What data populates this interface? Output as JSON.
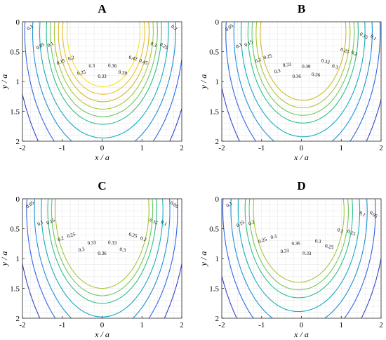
{
  "chart_data": [
    {
      "type": "contour",
      "title": "A",
      "xlabel": "x / a",
      "ylabel": "y / a",
      "xlim": [
        -2,
        2
      ],
      "ylim": [
        2,
        0
      ],
      "xticks": [
        "-2",
        "-1",
        "0",
        "1",
        "2"
      ],
      "yticks": [
        "0",
        "0.5",
        "1",
        "1.5",
        "2"
      ],
      "grid": true,
      "y_axis_reversed": true,
      "contour_levels": [
        0.05,
        0.1,
        0.15,
        0.2,
        0.25,
        0.3,
        0.33,
        0.36,
        0.39,
        0.42,
        0.45
      ],
      "level_labels": [
        "0.1",
        "0.05",
        "0.1",
        "0.15",
        "0.2",
        "0.25",
        "0.3",
        "0.33",
        "0.36",
        "0.39",
        "0.42",
        "0.45",
        "0.3",
        "0.25",
        "0.2"
      ]
    },
    {
      "type": "contour",
      "title": "B",
      "xlabel": "x / a",
      "ylabel": "y / a",
      "xlim": [
        -2,
        2
      ],
      "ylim": [
        2,
        0
      ],
      "xticks": [
        "-2",
        "-1",
        "0",
        "1",
        "2"
      ],
      "yticks": [
        "0",
        "0.5",
        "1",
        "1.5",
        "2"
      ],
      "grid": true,
      "y_axis_reversed": true,
      "contour_levels": [
        0.05,
        0.1,
        0.15,
        0.2,
        0.25,
        0.3,
        0.33,
        0.36,
        0.39
      ],
      "level_labels": [
        "0.05",
        "0.1",
        "0.15",
        "0.2",
        "0.25",
        "0.3",
        "0.33",
        "0.36",
        "0.39",
        "0.36",
        "0.33",
        "0.3",
        "0.25",
        "0.2",
        "0.15",
        "0.1"
      ]
    },
    {
      "type": "contour",
      "title": "C",
      "xlabel": "x / a",
      "ylabel": "y / a",
      "xlim": [
        -2,
        2
      ],
      "ylim": [
        2,
        0
      ],
      "xticks": [
        "-2",
        "-1",
        "0",
        "1",
        "2"
      ],
      "yticks": [
        "0",
        "0.5",
        "1",
        "1.5",
        "2"
      ],
      "grid": true,
      "y_axis_reversed": true,
      "contour_levels": [
        0.05,
        0.1,
        0.15,
        0.2,
        0.25,
        0.3,
        0.33,
        0.36
      ],
      "level_labels": [
        "0.05",
        "0.1",
        "0.15",
        "0.2",
        "0.25",
        "0.3",
        "0.33",
        "0.36",
        "0.33",
        "0.3",
        "0.25",
        "0.2",
        "0.15",
        "0.1",
        "0.05"
      ]
    },
    {
      "type": "contour",
      "title": "D",
      "xlabel": "x / a",
      "ylabel": "y / a",
      "xlim": [
        -2,
        2
      ],
      "ylim": [
        2,
        0
      ],
      "xticks": [
        "-2",
        "-1",
        "0",
        "1",
        "2"
      ],
      "yticks": [
        "0",
        "0.5",
        "1",
        "1.5",
        "2"
      ],
      "grid": true,
      "y_axis_reversed": true,
      "contour_levels": [
        0.05,
        0.1,
        0.15,
        0.2,
        0.25,
        0.3,
        0.33,
        0.36
      ],
      "level_labels": [
        "0.1",
        "0.15",
        "0.2",
        "0.25",
        "0.3",
        "0.33",
        "0.36",
        "0.33",
        "0.3",
        "0.25",
        "0.2",
        "0.15",
        "0.1",
        "0.05"
      ]
    }
  ],
  "colors": {
    "0.05": "#2f1f9a",
    "0.1": "#3243c9",
    "0.15": "#2c66e6",
    "0.2": "#1c8fd6",
    "0.25": "#13aabf",
    "0.3": "#2fbf8e",
    "0.33": "#6fc85e",
    "0.36": "#a8c63a",
    "0.39": "#d1ba2c",
    "0.42": "#efc12a",
    "0.45": "#f9e21d",
    "grid": "#e6e6e6",
    "axis": "#262626"
  }
}
